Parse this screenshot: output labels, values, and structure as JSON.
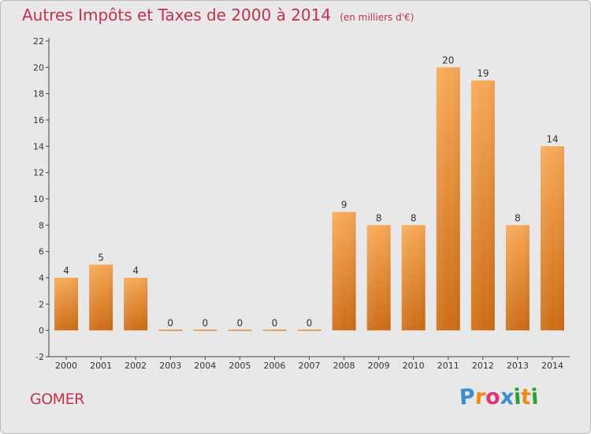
{
  "chart_data": {
    "type": "bar",
    "title": "Autres Impôts et Taxes de 2000 à 2014",
    "subtitle": "(en milliers d'€)",
    "categories": [
      "2000",
      "2001",
      "2002",
      "2003",
      "2004",
      "2005",
      "2006",
      "2007",
      "2008",
      "2009",
      "2010",
      "2011",
      "2012",
      "2013",
      "2014"
    ],
    "values": [
      4,
      5,
      4,
      0,
      0,
      0,
      0,
      0,
      9,
      8,
      8,
      20,
      19,
      8,
      14
    ],
    "data_labels": [
      "4",
      "5",
      "4",
      "0",
      "0",
      "0",
      "0",
      "0",
      "9",
      "8",
      "8",
      "20",
      "19",
      "8",
      "14"
    ],
    "y_ticks": [
      "-2",
      "0",
      "2",
      "4",
      "6",
      "8",
      "10",
      "12",
      "14",
      "16",
      "18",
      "20",
      "22"
    ],
    "ylim": [
      -2,
      22
    ],
    "grid": false,
    "bar_color": "#e98f35"
  },
  "footer": {
    "location": "GOMER",
    "brand_letters": [
      "P",
      "r",
      "o",
      "x",
      "i",
      "t",
      "i"
    ],
    "brand_colors": [
      "#3b8fd0",
      "#ef8a1a",
      "#e0337c",
      "#3b8fd0",
      "#2f9e3a",
      "#ef8a1a",
      "#2f9e3a"
    ]
  }
}
